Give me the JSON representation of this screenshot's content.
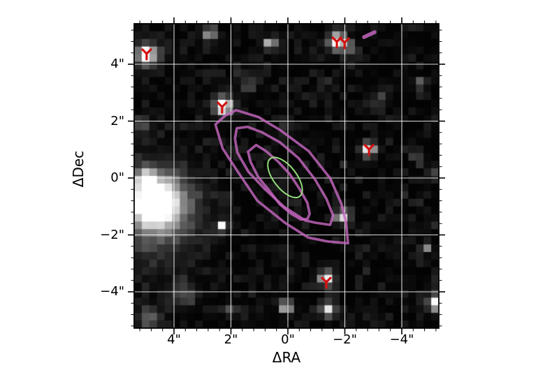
{
  "figure": {
    "xlabel": "ΔRA",
    "ylabel": "ΔDec",
    "x_tick_labels": [
      "4\"",
      "2\"",
      "0\"",
      "−2\"",
      "−4\""
    ],
    "y_tick_labels": [
      "4\"",
      "2\"",
      "0\"",
      "−2\"",
      "−4\""
    ]
  },
  "chart_data": {
    "type": "heatmap",
    "description": "Grayscale astronomical image cutout (pixelated sky image) with white coordinate grid, purple emission contours, a green aperture ellipse, red tri-down source markers and a small purple beam dash.",
    "xlabel": "ΔRA",
    "ylabel": "ΔDec",
    "x_ticks_arcsec": [
      4,
      2,
      0,
      -2,
      -4
    ],
    "y_ticks_arcsec": [
      4,
      2,
      0,
      -2,
      -4
    ],
    "minor_tick_step_arcsec": 0.4,
    "x_range_arcsec": [
      5.4,
      -5.3
    ],
    "y_range_arcsec": [
      -5.28,
      5.42
    ],
    "grid": true,
    "colors": {
      "background": "#000000",
      "grid": "#ffffff",
      "contour_purple": "#c467be",
      "aperture_green": "#9ce87f",
      "marker_red": "#d40f0f",
      "axis": "#000000"
    },
    "sources": [
      {
        "ra": 4.96,
        "dec": 4.34,
        "sigma": 0.17,
        "peak": 255
      },
      {
        "ra": 4.96,
        "dec": 4.34,
        "sigma": 0.33,
        "peak": 110
      },
      {
        "ra": -1.72,
        "dec": 4.79,
        "sigma": 0.2,
        "peak": 255
      },
      {
        "ra": -2.16,
        "dec": 4.61,
        "sigma": 0.15,
        "peak": 120
      },
      {
        "ra": 2.75,
        "dec": 5.06,
        "sigma": 0.16,
        "peak": 170
      },
      {
        "ra": 0.61,
        "dec": 4.71,
        "sigma": 0.14,
        "peak": 200
      },
      {
        "ra": 2.26,
        "dec": 2.55,
        "sigma": 0.16,
        "peak": 255
      },
      {
        "ra": 2.26,
        "dec": 2.55,
        "sigma": 0.28,
        "peak": 100
      },
      {
        "ra": -2.85,
        "dec": 1.01,
        "sigma": 0.16,
        "peak": 255
      },
      {
        "ra": 4.64,
        "dec": -0.86,
        "sigma": 0.45,
        "peak": 255
      },
      {
        "ra": 4.64,
        "dec": -0.86,
        "sigma": 0.66,
        "peak": 170
      },
      {
        "ra": 4.71,
        "dec": -1.28,
        "sigma": 1.05,
        "peak": 80
      },
      {
        "ra": 4.96,
        "dec": 0.0,
        "sigma": 0.23,
        "peak": 170
      },
      {
        "ra": 2.31,
        "dec": -1.7,
        "sigma": 0.13,
        "peak": 235
      },
      {
        "ra": -1.35,
        "dec": -3.53,
        "sigma": 0.17,
        "peak": 255
      },
      {
        "ra": -1.42,
        "dec": -4.64,
        "sigma": 0.16,
        "peak": 230
      },
      {
        "ra": 0.07,
        "dec": -4.52,
        "sigma": 0.14,
        "peak": 255
      },
      {
        "ra": -5.23,
        "dec": -4.39,
        "sigma": 0.2,
        "peak": 255
      },
      {
        "ra": -4.88,
        "dec": -2.43,
        "sigma": 0.12,
        "peak": 140
      },
      {
        "ra": -3.26,
        "dec": 2.82,
        "sigma": 0.18,
        "peak": 60
      },
      {
        "ra": -4.52,
        "dec": 0.81,
        "sigma": 0.15,
        "peak": 70
      },
      {
        "ra": 1.4,
        "dec": 3.31,
        "sigma": 0.2,
        "peak": 55
      },
      {
        "ra": -4.66,
        "dec": 3.36,
        "sigma": 0.12,
        "peak": 80
      },
      {
        "ra": 4.86,
        "dec": -4.91,
        "sigma": 0.26,
        "peak": 95
      },
      {
        "ra": 3.73,
        "dec": -4.05,
        "sigma": 0.3,
        "peak": 70
      },
      {
        "ra": 5.08,
        "dec": 1.84,
        "sigma": 0.2,
        "peak": 75
      },
      {
        "ra": 2.01,
        "dec": -4.66,
        "sigma": 0.15,
        "peak": 70
      },
      {
        "ra": -1.91,
        "dec": -1.35,
        "sigma": 0.16,
        "peak": 230
      },
      {
        "ra": 0.12,
        "dec": 1.91,
        "sigma": 0.15,
        "peak": 50
      },
      {
        "ra": -5.1,
        "dec": 0.25,
        "sigma": 0.15,
        "peak": 60
      }
    ],
    "contours_purple": [
      {
        "ra": 0.17,
        "dec": 0.07,
        "a": 3.12,
        "b": 1.18,
        "rot": 46
      },
      {
        "ra": 0.22,
        "dec": 0.12,
        "a": 2.33,
        "b": 0.79,
        "rot": 46
      },
      {
        "ra": 0.32,
        "dec": -0.15,
        "a": 1.62,
        "b": 0.47,
        "rot": 52
      }
    ],
    "aperture_green": {
      "ra": 0.1,
      "dec": 0.02,
      "a": 0.84,
      "b": 0.4,
      "rot": 52
    },
    "markers_tri_down": [
      {
        "ra": 4.96,
        "dec": 4.37
      },
      {
        "ra": -1.72,
        "dec": 4.79
      },
      {
        "ra": -1.99,
        "dec": 4.76
      },
      {
        "ra": 2.31,
        "dec": 2.5
      },
      {
        "ra": -2.85,
        "dec": 1.01
      },
      {
        "ra": -1.35,
        "dec": -3.66
      }
    ],
    "beam_dash": {
      "ra": -2.86,
      "dec": 5.04,
      "length_arcsec": 0.41,
      "angle_deg": -25
    }
  }
}
